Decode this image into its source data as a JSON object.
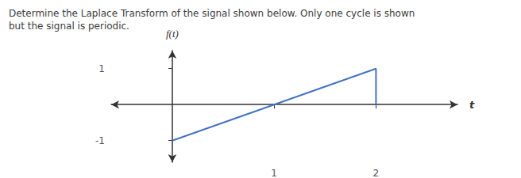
{
  "chart_data": {
    "type": "line",
    "title": "Determine the Laplace Transform of the signal shown below. Only one cycle is shown\nbut the signal is periodic.",
    "x": [
      0,
      2,
      2
    ],
    "values": [
      -1,
      1,
      0
    ],
    "color": "#4472C4",
    "xlim": [
      -0.6,
      2.8
    ],
    "ylim": [
      -1.6,
      1.5
    ],
    "xticks": [
      1,
      2
    ],
    "yticks": [
      -1,
      1
    ],
    "xlabel": "t",
    "ylabel": "f(t)",
    "grid": false
  }
}
